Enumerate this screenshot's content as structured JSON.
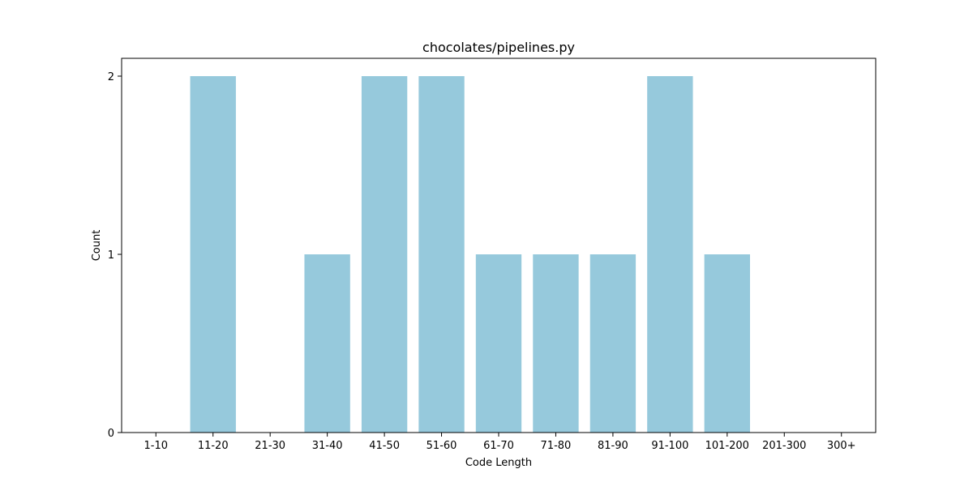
{
  "chart_data": {
    "type": "bar",
    "title": "chocolates/pipelines.py",
    "xlabel": "Code Length",
    "ylabel": "Count",
    "categories": [
      "1-10",
      "11-20",
      "21-30",
      "31-40",
      "41-50",
      "51-60",
      "61-70",
      "71-80",
      "81-90",
      "91-100",
      "101-200",
      "201-300",
      "300+"
    ],
    "values": [
      0,
      2,
      0,
      1,
      2,
      2,
      1,
      1,
      1,
      2,
      1,
      0,
      0
    ],
    "ylim": [
      0,
      2.1
    ],
    "yticks": [
      0,
      1,
      2
    ],
    "grid": false,
    "legend": "none",
    "bar_color": "#96c9dc"
  }
}
